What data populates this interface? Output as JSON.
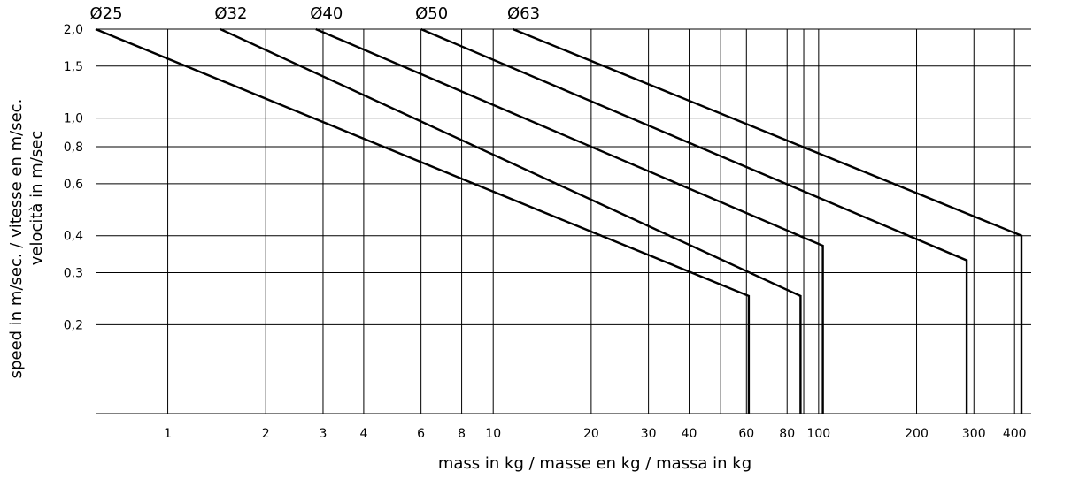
{
  "chart_data": {
    "type": "line",
    "xlabel": "mass in kg / masse en kg / massa in kg",
    "ylabel_lines": [
      "speed in m/sec. / vitesse en m/sec.",
      "velocità in m/sec"
    ],
    "x_scale": "log",
    "y_scale": "log",
    "xlim": [
      0.6,
      450
    ],
    "ylim": [
      0.1,
      2.0
    ],
    "x_ticks": [
      {
        "value": 1,
        "label": "1"
      },
      {
        "value": 2,
        "label": "2"
      },
      {
        "value": 3,
        "label": "3"
      },
      {
        "value": 4,
        "label": "4"
      },
      {
        "value": 6,
        "label": "6"
      },
      {
        "value": 8,
        "label": "8"
      },
      {
        "value": 10,
        "label": "10"
      },
      {
        "value": 20,
        "label": "20"
      },
      {
        "value": 30,
        "label": "30"
      },
      {
        "value": 40,
        "label": "40"
      },
      {
        "value": 60,
        "label": "60"
      },
      {
        "value": 80,
        "label": "80"
      },
      {
        "value": 100,
        "label": "100"
      },
      {
        "value": 200,
        "label": "200"
      },
      {
        "value": 300,
        "label": "300"
      },
      {
        "value": 400,
        "label": "400"
      }
    ],
    "x_extra_gridlines": [
      50,
      90
    ],
    "y_ticks": [
      {
        "value": 2.0,
        "label": "2,0"
      },
      {
        "value": 1.5,
        "label": "1,5"
      },
      {
        "value": 1.0,
        "label": "1,0"
      },
      {
        "value": 0.8,
        "label": "0,8"
      },
      {
        "value": 0.6,
        "label": "0,6"
      },
      {
        "value": 0.4,
        "label": "0,4"
      },
      {
        "value": 0.3,
        "label": "0,3"
      },
      {
        "value": 0.2,
        "label": "0,2"
      }
    ],
    "grid": true,
    "series": [
      {
        "name": "Ø25",
        "x": [
          0.6,
          61,
          61
        ],
        "y": [
          2.0,
          0.25,
          0.1
        ]
      },
      {
        "name": "Ø32",
        "x": [
          1.45,
          88,
          88
        ],
        "y": [
          2.0,
          0.25,
          0.1
        ]
      },
      {
        "name": "Ø40",
        "x": [
          2.85,
          103,
          103
        ],
        "y": [
          2.0,
          0.37,
          0.1
        ]
      },
      {
        "name": "Ø50",
        "x": [
          6.0,
          285,
          285
        ],
        "y": [
          2.0,
          0.33,
          0.1
        ]
      },
      {
        "name": "Ø63",
        "x": [
          11.5,
          420,
          420
        ],
        "y": [
          2.0,
          0.4,
          0.1
        ]
      }
    ]
  }
}
